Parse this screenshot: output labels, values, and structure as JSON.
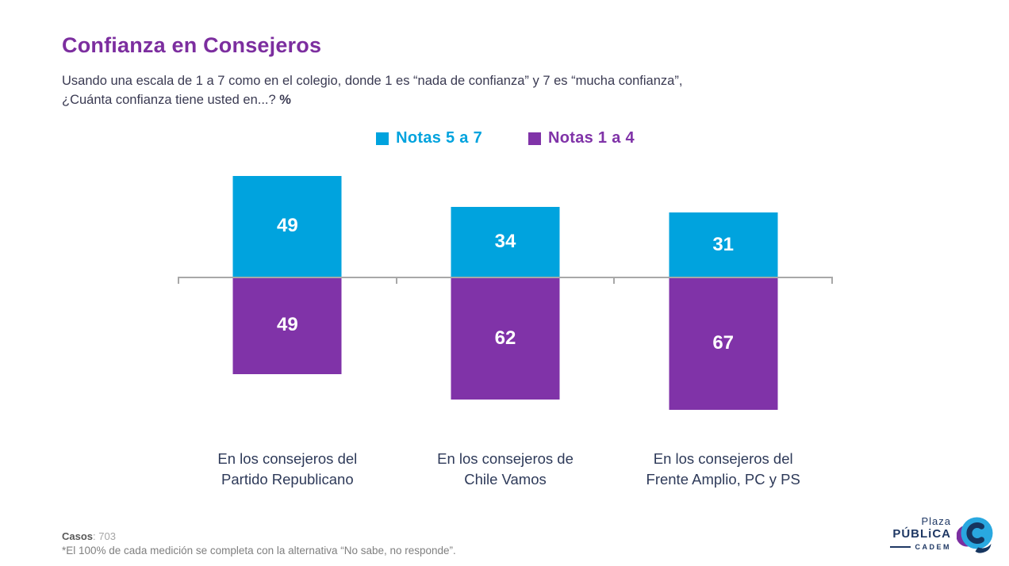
{
  "header": {
    "title": "Confianza en Consejeros",
    "subtitle_line1": "Usando una escala de 1 a 7 como en el colegio, donde 1 es “nada de confianza” y 7 es “mucha confianza”,",
    "subtitle_line2": "¿Cuánta confianza tiene usted en...?",
    "subtitle_unit": "%"
  },
  "chart_data": {
    "type": "bar",
    "variant": "diverging-stacked-column",
    "unit": "%",
    "title": "Confianza en Consejeros",
    "categories": [
      "En los consejeros del\nPartido Republicano",
      "En los consejeros de\nChile Vamos",
      "En los consejeros del\nFrente Amplio, PC y PS"
    ],
    "series": [
      {
        "name": "Notas 5 a 7",
        "color": "#00A3DE",
        "direction": "up",
        "values": [
          49,
          34,
          31
        ]
      },
      {
        "name": "Notas 1 a 4",
        "color": "#8033A8",
        "direction": "down",
        "values": [
          49,
          62,
          67
        ]
      }
    ],
    "legend_position": "top-center",
    "grid": false,
    "baseline_color": "#A8A8A8",
    "value_label_color": "#FFFFFF",
    "category_label_color": "#2E3A59"
  },
  "footer": {
    "cases_label": "Casos",
    "cases_rest": ": 703",
    "note": "*El 100% de cada medición se completa con la alternativa “No sabe, no responde”."
  },
  "logo": {
    "line1": "Plaza",
    "line2": "PÚBLiCA",
    "line3": "CADEM"
  },
  "colors": {
    "title": "#7C2E9F",
    "subtitle": "#3A3A52",
    "footer_dark": "#595959",
    "footer_light": "#A5A5A5",
    "note": "#7F7F7F",
    "logo_navy": "#1F3864",
    "logo_blue": "#29A8E0",
    "logo_purple": "#7B2FA0"
  }
}
